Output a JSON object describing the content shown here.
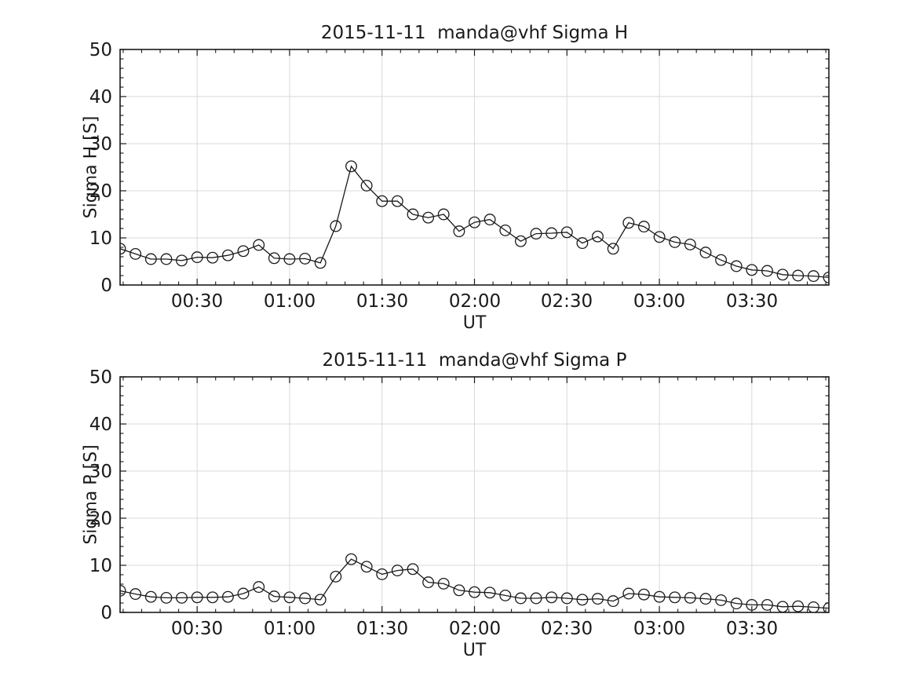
{
  "page": {
    "background_color": "#ffffff",
    "text_color": "#1a1a1a"
  },
  "chart_data": [
    {
      "type": "line",
      "title": "2015-11-11  manda@vhf Sigma H",
      "xlabel": "UT",
      "ylabel": "Sigma H [S]",
      "ylim": [
        0,
        50
      ],
      "x_range_minutes": [
        5,
        235
      ],
      "grid": true,
      "legend": null,
      "marker": "circle",
      "line_color": "#1a1a1a",
      "grid_color": "#d9d9d9",
      "yticks": [
        0,
        10,
        20,
        30,
        40,
        50
      ],
      "ytick_labels": [
        "0",
        "10",
        "20",
        "30",
        "40",
        "50"
      ],
      "xtick_minutes": [
        30,
        60,
        90,
        120,
        150,
        180,
        210
      ],
      "xtick_labels": [
        "00:30",
        "01:00",
        "01:30",
        "02:00",
        "02:30",
        "03:00",
        "03:30"
      ],
      "x": [
        "00:05",
        "00:10",
        "00:15",
        "00:20",
        "00:25",
        "00:30",
        "00:35",
        "00:40",
        "00:45",
        "00:50",
        "00:55",
        "01:00",
        "01:05",
        "01:10",
        "01:15",
        "01:20",
        "01:25",
        "01:30",
        "01:35",
        "01:40",
        "01:45",
        "01:50",
        "01:55",
        "02:00",
        "02:05",
        "02:10",
        "02:15",
        "02:20",
        "02:25",
        "02:30",
        "02:35",
        "02:40",
        "02:45",
        "02:50",
        "02:55",
        "03:00",
        "03:05",
        "03:10",
        "03:15",
        "03:20",
        "03:25",
        "03:30",
        "03:35",
        "03:40",
        "03:45",
        "03:50",
        "03:55"
      ],
      "values": [
        7.7,
        6.6,
        5.5,
        5.5,
        5.2,
        5.9,
        5.8,
        6.3,
        7.2,
        8.5,
        5.7,
        5.5,
        5.6,
        4.7,
        12.5,
        25.2,
        21.1,
        17.8,
        17.8,
        15.0,
        14.3,
        15.0,
        11.4,
        13.3,
        13.9,
        11.6,
        9.3,
        10.9,
        11.0,
        11.2,
        8.9,
        10.3,
        7.7,
        13.2,
        12.4,
        10.2,
        9.1,
        8.6,
        6.9,
        5.3,
        4.0,
        3.2,
        3.0,
        2.2,
        2.0,
        1.9,
        1.6
      ]
    },
    {
      "type": "line",
      "title": "2015-11-11  manda@vhf Sigma P",
      "xlabel": "UT",
      "ylabel": "Sigma P [S]",
      "ylim": [
        0,
        50
      ],
      "x_range_minutes": [
        5,
        235
      ],
      "grid": true,
      "legend": null,
      "marker": "circle",
      "line_color": "#1a1a1a",
      "grid_color": "#d9d9d9",
      "yticks": [
        0,
        10,
        20,
        30,
        40,
        50
      ],
      "ytick_labels": [
        "0",
        "10",
        "20",
        "30",
        "40",
        "50"
      ],
      "xtick_minutes": [
        30,
        60,
        90,
        120,
        150,
        180,
        210
      ],
      "xtick_labels": [
        "00:30",
        "01:00",
        "01:30",
        "02:00",
        "02:30",
        "03:00",
        "03:30"
      ],
      "x": [
        "00:05",
        "00:10",
        "00:15",
        "00:20",
        "00:25",
        "00:30",
        "00:35",
        "00:40",
        "00:45",
        "00:50",
        "00:55",
        "01:00",
        "01:05",
        "01:10",
        "01:15",
        "01:20",
        "01:25",
        "01:30",
        "01:35",
        "01:40",
        "01:45",
        "01:50",
        "01:55",
        "02:00",
        "02:05",
        "02:10",
        "02:15",
        "02:20",
        "02:25",
        "02:30",
        "02:35",
        "02:40",
        "02:45",
        "02:50",
        "02:55",
        "03:00",
        "03:05",
        "03:10",
        "03:15",
        "03:20",
        "03:25",
        "03:30",
        "03:35",
        "03:40",
        "03:45",
        "03:50",
        "03:55"
      ],
      "values": [
        4.6,
        3.9,
        3.3,
        3.1,
        3.1,
        3.2,
        3.2,
        3.3,
        4.0,
        5.4,
        3.4,
        3.2,
        3.0,
        2.7,
        7.6,
        11.3,
        9.7,
        8.1,
        8.9,
        9.2,
        6.4,
        6.1,
        4.7,
        4.3,
        4.2,
        3.6,
        3.0,
        3.0,
        3.2,
        3.0,
        2.7,
        2.9,
        2.4,
        4.0,
        3.8,
        3.3,
        3.2,
        3.1,
        2.9,
        2.6,
        1.9,
        1.6,
        1.6,
        1.2,
        1.3,
        1.1,
        0.9
      ]
    }
  ]
}
